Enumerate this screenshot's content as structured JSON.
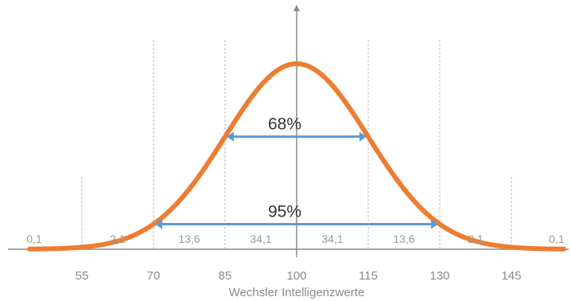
{
  "chart_data": {
    "type": "line",
    "title": "",
    "xlabel": "Wechsler Intelligenzwerte",
    "ylabel": "",
    "mean": 100,
    "sd": 15,
    "xlim": [
      44,
      156
    ],
    "x_ticks": [
      {
        "value": 55,
        "label": "55"
      },
      {
        "value": 70,
        "label": "70"
      },
      {
        "value": 85,
        "label": "85"
      },
      {
        "value": 100,
        "label": "100"
      },
      {
        "value": 115,
        "label": "115"
      },
      {
        "value": 130,
        "label": "130"
      },
      {
        "value": 145,
        "label": "145"
      }
    ],
    "grid_vertical_at": [
      55,
      70,
      85,
      115,
      130,
      145
    ],
    "segments": [
      {
        "from": 40,
        "to": 55,
        "label": "0,1"
      },
      {
        "from": 55,
        "to": 70,
        "label": "2,1"
      },
      {
        "from": 70,
        "to": 85,
        "label": "13,6"
      },
      {
        "from": 85,
        "to": 100,
        "label": "34,1"
      },
      {
        "from": 100,
        "to": 115,
        "label": "34,1"
      },
      {
        "from": 115,
        "to": 130,
        "label": "13,6"
      },
      {
        "from": 130,
        "to": 145,
        "label": "2,1"
      },
      {
        "from": 145,
        "to": 160,
        "label": "0,1"
      }
    ],
    "spans": [
      {
        "from": 85,
        "to": 115,
        "label": "68%"
      },
      {
        "from": 70,
        "to": 130,
        "label": "95%"
      }
    ],
    "colors": {
      "curve": "#ED7D31",
      "arrow": "#5B9BD5",
      "axis": "#8a8a8a",
      "grid": "#bbbbbb"
    }
  }
}
